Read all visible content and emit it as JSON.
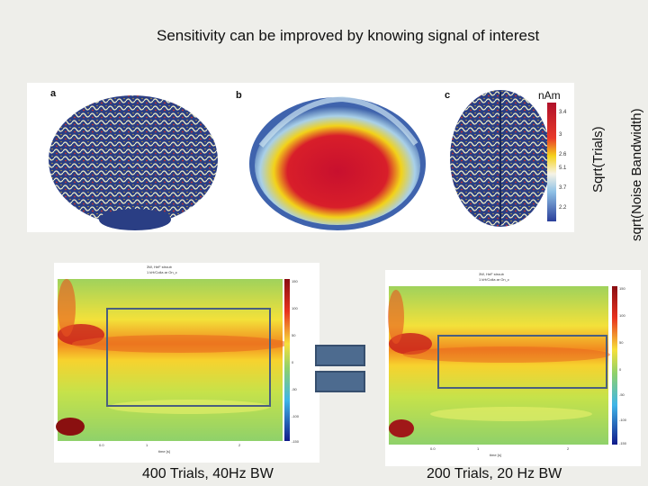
{
  "title": "Sensitivity can be improved by knowing signal of interest",
  "brain_panel": {
    "letters": [
      "a",
      "b",
      "c"
    ],
    "unit": "nAm",
    "scale_ticks": [
      "3.4",
      "3",
      "2.6",
      "5.1",
      "3.7",
      "2.2"
    ]
  },
  "side_labels": {
    "trials": "Sqrt(Trials)",
    "bandwidth": "sqrt(Noise Bandwidth)"
  },
  "left_plot": {
    "caption": "400 Trials, 40Hz BW",
    "header": [
      "3W, HeF stroub",
      "1 kH/Coila ar On_c"
    ],
    "x_ticks": [
      "0.0",
      "1",
      "2"
    ],
    "x_label": "time [s]",
    "c_ticks": [
      "150",
      "100",
      "50",
      "0",
      "-50",
      "-100",
      "-150"
    ]
  },
  "right_plot": {
    "caption": "200 Trials, 20 Hz BW",
    "header": [
      "3W, HeF stroub",
      "1 kH/Coila ar On_c"
    ],
    "x_ticks": [
      "0.0",
      "1",
      "2"
    ],
    "x_label": "time [s]",
    "c_ticks": [
      "150",
      "100",
      "50",
      "0",
      "-50",
      "-100",
      "-150"
    ]
  }
}
